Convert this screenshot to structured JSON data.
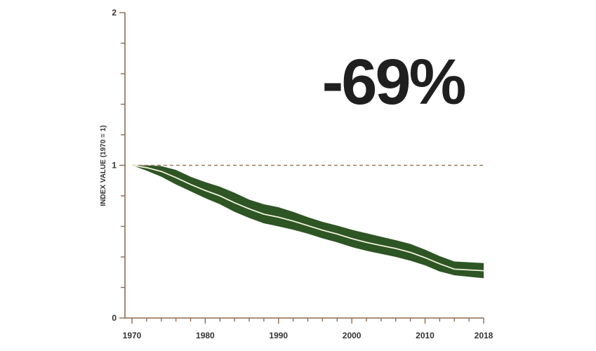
{
  "chart_data": {
    "type": "area",
    "ylabel": "INDEX VALUE (1970 = 1)",
    "xlabel": "",
    "xlim": [
      1970,
      2018
    ],
    "ylim": [
      0,
      2
    ],
    "x_ticks": [
      "1970",
      "1980",
      "1990",
      "2000",
      "2010",
      "2018"
    ],
    "y_ticks": [
      "0",
      "1",
      "2"
    ],
    "reference_line": {
      "y": 1,
      "style": "dashed"
    },
    "annotation": "-69%",
    "colors": {
      "band": "#2e5524",
      "mean_line": "#f2f0dc",
      "axis": "#8c6a4f",
      "reference": "#9a7a5e"
    },
    "series": [
      {
        "x": [
          1970,
          1972,
          1974,
          1976,
          1978,
          1980,
          1982,
          1984,
          1986,
          1988,
          1990,
          1992,
          1994,
          1996,
          1998,
          2000,
          2002,
          2004,
          2006,
          2008,
          2010,
          2012,
          2014,
          2016,
          2018
        ],
        "values": [
          1.0,
          0.985,
          0.96,
          0.92,
          0.875,
          0.835,
          0.8,
          0.755,
          0.715,
          0.68,
          0.66,
          0.635,
          0.605,
          0.575,
          0.55,
          0.52,
          0.495,
          0.475,
          0.455,
          0.43,
          0.395,
          0.355,
          0.32,
          0.315,
          0.31
        ],
        "lower": [
          1.0,
          0.965,
          0.925,
          0.875,
          0.83,
          0.785,
          0.745,
          0.695,
          0.655,
          0.62,
          0.6,
          0.578,
          0.552,
          0.522,
          0.495,
          0.465,
          0.44,
          0.42,
          0.4,
          0.375,
          0.345,
          0.305,
          0.28,
          0.27,
          0.26
        ],
        "upper": [
          1.0,
          1.0,
          0.995,
          0.97,
          0.925,
          0.89,
          0.86,
          0.82,
          0.775,
          0.745,
          0.725,
          0.695,
          0.66,
          0.63,
          0.605,
          0.578,
          0.555,
          0.532,
          0.51,
          0.485,
          0.448,
          0.405,
          0.37,
          0.365,
          0.36
        ]
      }
    ]
  }
}
